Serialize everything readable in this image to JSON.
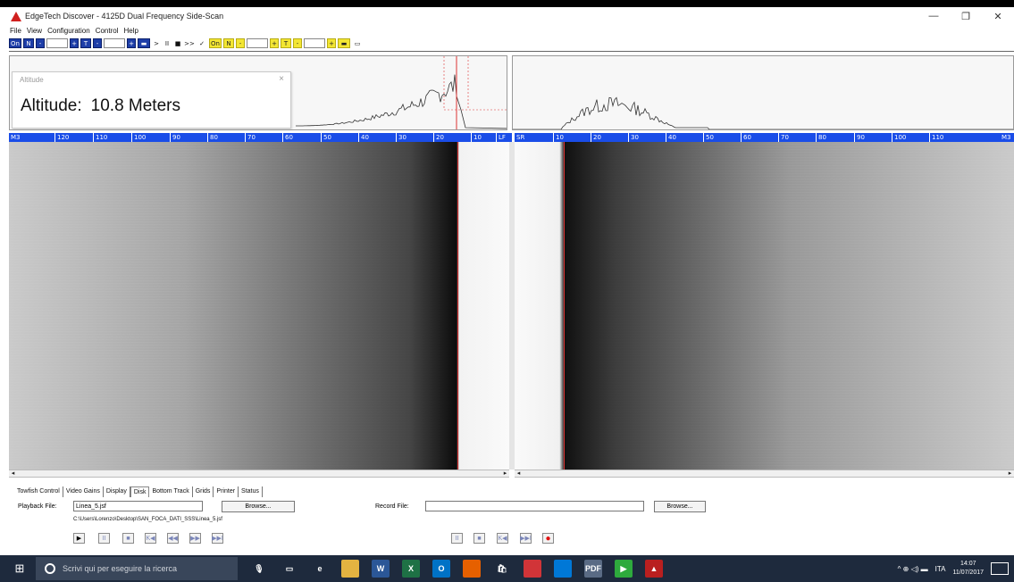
{
  "window": {
    "title": "EdgeTech Discover - 4125D  Dual Frequency Side-Scan",
    "minimize": "—",
    "maximize": "❐",
    "close": "✕"
  },
  "menu": [
    "File",
    "View",
    "Configuration",
    "Control",
    "Help"
  ],
  "toolbar": {
    "icons": [
      "on-button",
      "n-button",
      "minus-button",
      "plus-button",
      "t-button",
      "play-button",
      "pause-button",
      "stop-button",
      "forward-button",
      "check-button"
    ],
    "labels": [
      "On",
      "N",
      "-",
      "+",
      "T",
      "-",
      "+",
      ">",
      "II",
      "■",
      ">>",
      "✓",
      "On",
      "N",
      "-",
      "+",
      "T",
      "-",
      "+"
    ]
  },
  "altitude_window": {
    "title": "Altitude",
    "close": "×",
    "label": "Altitude:",
    "value": "10.8 Meters"
  },
  "scale_left": {
    "end_label": "M3",
    "ticks": [
      "120",
      "110",
      "100",
      "90",
      "80",
      "70",
      "60",
      "50",
      "40",
      "30",
      "20",
      "10"
    ],
    "edge_label": "LF"
  },
  "scale_right": {
    "start_label": "SR",
    "ticks": [
      "10",
      "20",
      "30",
      "40",
      "50",
      "60",
      "70",
      "80",
      "90",
      "100",
      "110"
    ],
    "end_label": "M3"
  },
  "tabs": [
    "Towfish Control",
    "Video Gains",
    "Display",
    "Disk",
    "Bottom Track",
    "Grids",
    "Printer",
    "Status"
  ],
  "active_tab": "Disk",
  "playback": {
    "label": "Playback File:",
    "value": "Linea_5.jsf",
    "browse": "Browse...",
    "path": "C:\\Users\\Lorenzo\\Desktop\\SAN_FOCA_DATI_SSS\\Linea_5.jsf"
  },
  "record": {
    "label": "Record File:",
    "value": "",
    "browse": "Browse..."
  },
  "playback_controls": [
    "▶",
    "II",
    "■",
    "K◀",
    "◀◀",
    "▶▶",
    "▶▶I"
  ],
  "record_controls": [
    "II",
    "■",
    "K◀",
    "▶▶I",
    "●"
  ],
  "scroll": {
    "left_arrow": "◂",
    "right_arrow": "▸"
  },
  "taskbar": {
    "search_placeholder": "Scrivi qui per eseguire la ricerca",
    "apps": [
      {
        "name": "mic",
        "color": "#1e2a3d",
        "glyph": "🎙"
      },
      {
        "name": "task-view",
        "color": "#1e2a3d",
        "glyph": "▭"
      },
      {
        "name": "edge",
        "color": "#1e2a3d",
        "glyph": "e"
      },
      {
        "name": "file-explorer",
        "color": "#e3b341",
        "glyph": ""
      },
      {
        "name": "word",
        "color": "#2b5797",
        "glyph": "W"
      },
      {
        "name": "excel",
        "color": "#1e7145",
        "glyph": "X"
      },
      {
        "name": "outlook",
        "color": "#0072c6",
        "glyph": "O"
      },
      {
        "name": "firefox",
        "color": "#e66000",
        "glyph": ""
      },
      {
        "name": "store",
        "color": "#1e2a3d",
        "glyph": "🛍"
      },
      {
        "name": "app-red",
        "color": "#d13438",
        "glyph": ""
      },
      {
        "name": "app-blue",
        "color": "#0078d7",
        "glyph": ""
      },
      {
        "name": "pdf",
        "color": "#5a6b85",
        "glyph": "PDF"
      },
      {
        "name": "media-player",
        "color": "#2eaa3d",
        "glyph": "▶"
      },
      {
        "name": "discover-app",
        "color": "#b91f1f",
        "glyph": "▲"
      }
    ],
    "tray": {
      "language": "ITA",
      "time": "14:07",
      "date": "11/07/2017",
      "icons": "^ ⊕ ◁) ▬"
    }
  },
  "colors": {
    "scale_blue": "#1a4de8",
    "toolbar_blue": "#1e3ea8",
    "toolbar_yellow": "#f3e633",
    "taskbar": "#1e2a3d",
    "record_red": "#e01010"
  }
}
